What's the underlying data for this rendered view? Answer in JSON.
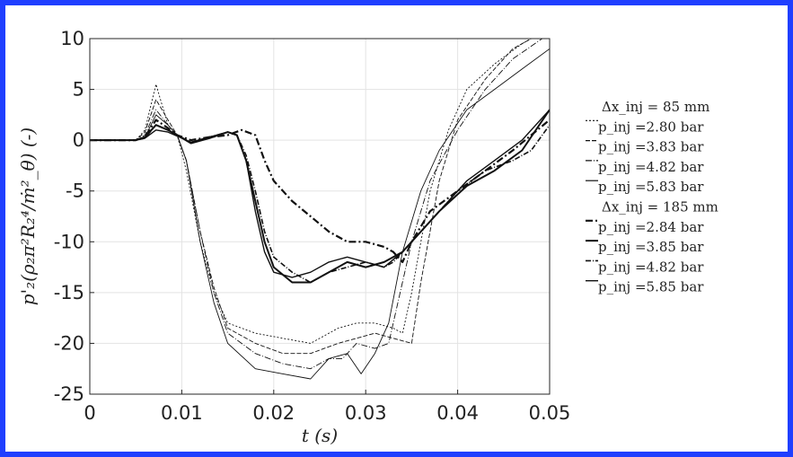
{
  "chart_data": {
    "type": "line",
    "xlabel": "t (s)",
    "ylabel": "p'₂(ρ₂π²R₂⁴/ṁ²_θ) (-)",
    "xlim": [
      0,
      0.05
    ],
    "ylim": [
      -25,
      10
    ],
    "xticks": [
      "0",
      "0.01",
      "0.02",
      "0.03",
      "0.04",
      "0.05"
    ],
    "yticks": [
      "10",
      "5",
      "0",
      "-5",
      "-10",
      "-15",
      "-20",
      "-25"
    ],
    "grid": true,
    "legend_position": "right, outside",
    "legend_groups": [
      {
        "header": "Δx_inj = 85 mm",
        "entries": [
          "p_inj =2.80 bar",
          "p_inj =3.83 bar",
          "p_inj =4.82 bar",
          "p_inj =5.83 bar"
        ]
      },
      {
        "header": "Δx_inj = 185 mm",
        "entries": [
          "p_inj =2.84 bar",
          "p_inj =3.85 bar",
          "p_inj =4.82 bar",
          "p_inj =5.85 bar"
        ]
      }
    ],
    "series": [
      {
        "name": "p_inj =2.80 bar",
        "group": "Δx_inj = 85 mm",
        "dash": "2,2",
        "width": 0.9,
        "points": [
          [
            0,
            0
          ],
          [
            0.005,
            0
          ],
          [
            0.006,
            1
          ],
          [
            0.0072,
            5.5
          ],
          [
            0.0085,
            1.5
          ],
          [
            0.0095,
            0.5
          ],
          [
            0.0105,
            -3
          ],
          [
            0.012,
            -10
          ],
          [
            0.0135,
            -15
          ],
          [
            0.015,
            -18
          ],
          [
            0.018,
            -19
          ],
          [
            0.021,
            -19.5
          ],
          [
            0.024,
            -20
          ],
          [
            0.027,
            -18.5
          ],
          [
            0.029,
            -18
          ],
          [
            0.031,
            -18
          ],
          [
            0.033,
            -18.5
          ],
          [
            0.034,
            -19
          ],
          [
            0.035,
            -15
          ],
          [
            0.037,
            -5
          ],
          [
            0.039,
            1
          ],
          [
            0.041,
            5
          ],
          [
            0.044,
            7.5
          ],
          [
            0.047,
            9.5
          ],
          [
            0.05,
            11
          ]
        ]
      },
      {
        "name": "p_inj =3.83 bar",
        "group": "Δx_inj = 85 mm",
        "dash": "5,2",
        "width": 0.9,
        "points": [
          [
            0,
            0
          ],
          [
            0.005,
            0
          ],
          [
            0.006,
            0.8
          ],
          [
            0.0072,
            4
          ],
          [
            0.0085,
            2
          ],
          [
            0.0095,
            0.5
          ],
          [
            0.0105,
            -2
          ],
          [
            0.012,
            -9
          ],
          [
            0.0135,
            -14.5
          ],
          [
            0.015,
            -18.5
          ],
          [
            0.018,
            -20
          ],
          [
            0.021,
            -21
          ],
          [
            0.024,
            -21
          ],
          [
            0.027,
            -20
          ],
          [
            0.029,
            -19.5
          ],
          [
            0.031,
            -19
          ],
          [
            0.033,
            -19.5
          ],
          [
            0.035,
            -20
          ],
          [
            0.036,
            -14
          ],
          [
            0.038,
            -4
          ],
          [
            0.04,
            2
          ],
          [
            0.043,
            6
          ],
          [
            0.046,
            9
          ],
          [
            0.05,
            11
          ]
        ]
      },
      {
        "name": "p_inj =4.82 bar",
        "group": "Δx_inj = 85 mm",
        "dash": "7,2,1,2",
        "width": 0.9,
        "points": [
          [
            0,
            0
          ],
          [
            0.005,
            0
          ],
          [
            0.006,
            0.5
          ],
          [
            0.0072,
            3
          ],
          [
            0.0085,
            1.5
          ],
          [
            0.0095,
            0.5
          ],
          [
            0.0105,
            -2
          ],
          [
            0.012,
            -9
          ],
          [
            0.0135,
            -15
          ],
          [
            0.015,
            -19
          ],
          [
            0.018,
            -21
          ],
          [
            0.021,
            -22
          ],
          [
            0.024,
            -22.5
          ],
          [
            0.026,
            -21.5
          ],
          [
            0.0275,
            -21.5
          ],
          [
            0.029,
            -20
          ],
          [
            0.031,
            -20.5
          ],
          [
            0.0325,
            -20
          ],
          [
            0.0335,
            -16
          ],
          [
            0.035,
            -10
          ],
          [
            0.037,
            -4
          ],
          [
            0.04,
            1
          ],
          [
            0.043,
            5
          ],
          [
            0.046,
            8
          ],
          [
            0.05,
            10.5
          ]
        ]
      },
      {
        "name": "p_inj =5.83 bar",
        "group": "Δx_inj = 85 mm",
        "dash": "",
        "width": 0.9,
        "points": [
          [
            0,
            0
          ],
          [
            0.005,
            0
          ],
          [
            0.006,
            0.3
          ],
          [
            0.0072,
            2.5
          ],
          [
            0.0085,
            1.5
          ],
          [
            0.0095,
            0.5
          ],
          [
            0.0105,
            -2
          ],
          [
            0.012,
            -10
          ],
          [
            0.0135,
            -16
          ],
          [
            0.015,
            -20
          ],
          [
            0.018,
            -22.5
          ],
          [
            0.021,
            -23
          ],
          [
            0.024,
            -23.5
          ],
          [
            0.026,
            -21.5
          ],
          [
            0.028,
            -21
          ],
          [
            0.0295,
            -23
          ],
          [
            0.031,
            -21
          ],
          [
            0.0325,
            -18
          ],
          [
            0.034,
            -11
          ],
          [
            0.036,
            -5
          ],
          [
            0.038,
            -1
          ],
          [
            0.041,
            3
          ],
          [
            0.044,
            5
          ],
          [
            0.047,
            7
          ],
          [
            0.05,
            9
          ]
        ]
      },
      {
        "name": "p_inj =2.84 bar",
        "group": "Δx_inj = 185 mm",
        "dash": "8,3,2,3",
        "width": 2.2,
        "points": [
          [
            0,
            0
          ],
          [
            0.005,
            0
          ],
          [
            0.006,
            0.3
          ],
          [
            0.0072,
            2
          ],
          [
            0.0085,
            1.2
          ],
          [
            0.0095,
            0.5
          ],
          [
            0.011,
            0
          ],
          [
            0.013,
            0.3
          ],
          [
            0.015,
            0.5
          ],
          [
            0.0165,
            1
          ],
          [
            0.018,
            0.5
          ],
          [
            0.019,
            -2
          ],
          [
            0.02,
            -4
          ],
          [
            0.022,
            -6
          ],
          [
            0.024,
            -7.5
          ],
          [
            0.026,
            -9
          ],
          [
            0.028,
            -10
          ],
          [
            0.03,
            -10
          ],
          [
            0.032,
            -10.5
          ],
          [
            0.033,
            -11
          ],
          [
            0.034,
            -12
          ],
          [
            0.035,
            -10
          ],
          [
            0.037,
            -7
          ],
          [
            0.04,
            -5
          ],
          [
            0.043,
            -3
          ],
          [
            0.046,
            -1
          ],
          [
            0.048,
            0.5
          ],
          [
            0.05,
            2
          ]
        ]
      },
      {
        "name": "p_inj =3.85 bar",
        "group": "Δx_inj = 185 mm",
        "dash": "",
        "width": 2.0,
        "points": [
          [
            0,
            0
          ],
          [
            0.005,
            0
          ],
          [
            0.006,
            0.3
          ],
          [
            0.0072,
            1.5
          ],
          [
            0.0085,
            1
          ],
          [
            0.0095,
            0.5
          ],
          [
            0.011,
            -0.3
          ],
          [
            0.013,
            0.2
          ],
          [
            0.015,
            0.8
          ],
          [
            0.016,
            0.5
          ],
          [
            0.017,
            -2
          ],
          [
            0.018,
            -6
          ],
          [
            0.019,
            -10
          ],
          [
            0.02,
            -12.5
          ],
          [
            0.022,
            -14
          ],
          [
            0.024,
            -14
          ],
          [
            0.026,
            -13
          ],
          [
            0.028,
            -12
          ],
          [
            0.03,
            -12.5
          ],
          [
            0.032,
            -12
          ],
          [
            0.034,
            -11
          ],
          [
            0.036,
            -9
          ],
          [
            0.038,
            -7
          ],
          [
            0.041,
            -4.5
          ],
          [
            0.044,
            -3
          ],
          [
            0.047,
            -1
          ],
          [
            0.05,
            3
          ]
        ]
      },
      {
        "name": "p_inj =4.82 bar",
        "group": "Δx_inj = 185 mm",
        "dash": "6,2,1,2",
        "width": 1.6,
        "points": [
          [
            0,
            0
          ],
          [
            0.005,
            0
          ],
          [
            0.006,
            0.2
          ],
          [
            0.0072,
            1.5
          ],
          [
            0.0085,
            1
          ],
          [
            0.0095,
            0.5
          ],
          [
            0.011,
            -0.2
          ],
          [
            0.013,
            0.3
          ],
          [
            0.015,
            0.8
          ],
          [
            0.016,
            0.5
          ],
          [
            0.017,
            -1.5
          ],
          [
            0.018,
            -5
          ],
          [
            0.019,
            -9
          ],
          [
            0.02,
            -11.5
          ],
          [
            0.022,
            -13
          ],
          [
            0.024,
            -14
          ],
          [
            0.026,
            -13
          ],
          [
            0.028,
            -12.5
          ],
          [
            0.03,
            -12
          ],
          [
            0.032,
            -12.5
          ],
          [
            0.033,
            -12
          ],
          [
            0.035,
            -10
          ],
          [
            0.037,
            -8
          ],
          [
            0.04,
            -5
          ],
          [
            0.043,
            -3
          ],
          [
            0.046,
            -2
          ],
          [
            0.048,
            -1
          ],
          [
            0.05,
            1.5
          ]
        ]
      },
      {
        "name": "p_inj =5.85 bar",
        "group": "Δx_inj = 185 mm",
        "dash": "",
        "width": 1.4,
        "points": [
          [
            0,
            0
          ],
          [
            0.005,
            0
          ],
          [
            0.006,
            0.2
          ],
          [
            0.0072,
            1
          ],
          [
            0.0085,
            0.8
          ],
          [
            0.0095,
            0.4
          ],
          [
            0.011,
            -0.2
          ],
          [
            0.013,
            0.3
          ],
          [
            0.015,
            0.8
          ],
          [
            0.016,
            0.5
          ],
          [
            0.017,
            -2
          ],
          [
            0.018,
            -7
          ],
          [
            0.019,
            -11
          ],
          [
            0.02,
            -13
          ],
          [
            0.022,
            -13.5
          ],
          [
            0.024,
            -13
          ],
          [
            0.026,
            -12
          ],
          [
            0.028,
            -11.5
          ],
          [
            0.03,
            -12
          ],
          [
            0.032,
            -12.5
          ],
          [
            0.034,
            -11
          ],
          [
            0.036,
            -9
          ],
          [
            0.038,
            -7
          ],
          [
            0.041,
            -4
          ],
          [
            0.044,
            -2
          ],
          [
            0.047,
            0
          ],
          [
            0.05,
            3
          ]
        ]
      }
    ]
  }
}
